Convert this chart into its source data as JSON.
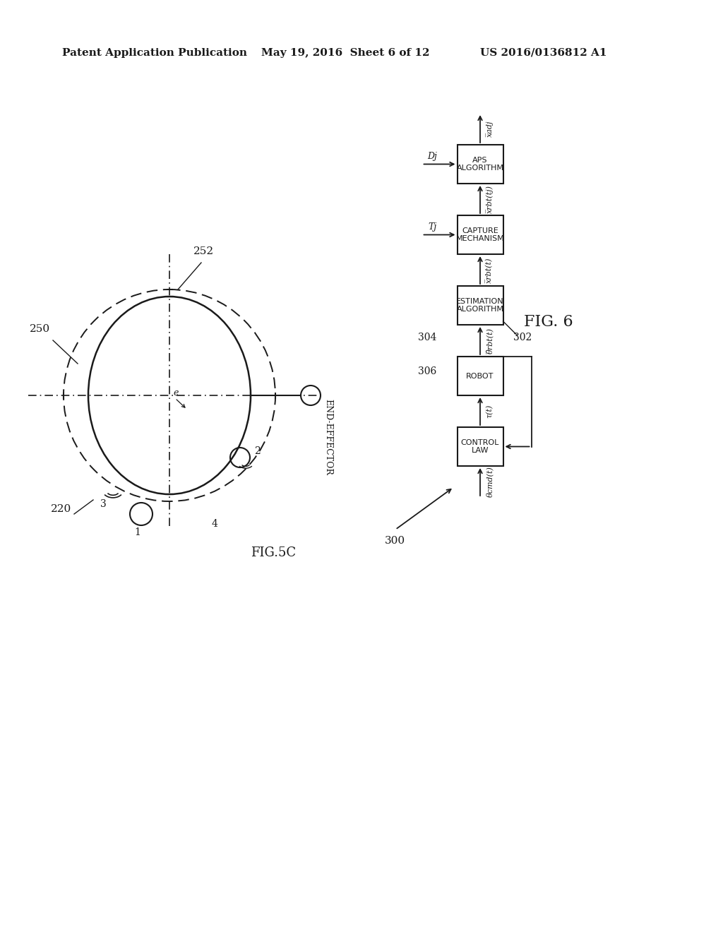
{
  "header_left": "Patent Application Publication",
  "header_mid": "May 19, 2016  Sheet 6 of 12",
  "header_right": "US 2016/0136812 A1",
  "fig5c_label": "FIG.5C",
  "fig6_label": "FIG. 6",
  "bg_color": "#ffffff",
  "line_color": "#1a1a1a",
  "label_220": "220",
  "label_250": "250",
  "label_252": "252",
  "label_1": "1",
  "label_2": "2",
  "label_3": "3",
  "label_4": "4",
  "label_e": "e",
  "end_effector": "END-EFFECTOR",
  "box_control_law": "CONTROL\nLAW",
  "box_robot": "ROBOT",
  "box_estimation": "ESTIMATION\nALGORITHM",
  "box_capture": "CAPTURE\nMECHANISM",
  "box_aps": "APS\nALGORITHM",
  "label_300": "300",
  "label_302": "302",
  "label_304": "304",
  "label_306": "306",
  "arrow_theta_cmd": "θcmd(t)",
  "arrow_tau": "τ(t)",
  "arrow_theta_rbt_bar": "θ̅rbt(t)",
  "arrow_xrbt_t": "x̅rbt(t)",
  "arrow_tj": "Tj",
  "arrow_xrbt_tj": "x̅rbt(tj)",
  "arrow_dj": "Dj",
  "arrow_xadj": "x̅adj",
  "arrow_theta_rbt": "θ̅rbt(t)"
}
